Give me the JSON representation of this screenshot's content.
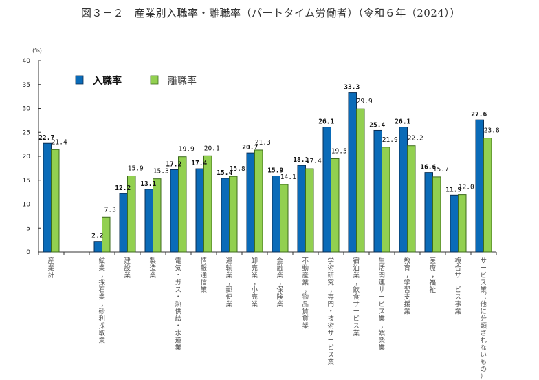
{
  "title": "図３－２　産業別入職率・離職率（パートタイム労働者）（令和６年（2024））",
  "colors": {
    "entry": "#0a6bb8",
    "entry_stroke": "#0b2f55",
    "separation": "#92d050",
    "separation_stroke": "#3d6b1c"
  },
  "chart_data": {
    "type": "bar",
    "title": "図３－２　産業別入職率・離職率（パートタイム労働者）（令和６年（2024））",
    "xlabel": "",
    "ylabel": "(%)",
    "ylim": [
      0,
      40
    ],
    "yticks": [
      0,
      5,
      10,
      15,
      20,
      25,
      30,
      35,
      40
    ],
    "grid": false,
    "legend_position": "top-left",
    "categories": [
      "産業計",
      "",
      "鉱業，採石業，砂利採取業",
      "建設業",
      "製造業",
      "電気・ガス・熱供給・水道業",
      "情報通信業",
      "運輸業，郵便業",
      "卸売業，小売業",
      "金融業，保険業",
      "不動産業，物品賃貸業",
      "学術研究，専門・技術サービス業",
      "宿泊業，飲食サービス業",
      "生活関連サービス業，娯楽業",
      "教育，学習支援業",
      "医療，福祉",
      "複合サービス事業",
      "サービス業（他に分類されないもの）"
    ],
    "series": [
      {
        "name": "入職率",
        "values": [
          22.7,
          null,
          2.2,
          12.2,
          13.1,
          17.2,
          17.4,
          15.4,
          20.7,
          15.9,
          18.1,
          26.1,
          33.3,
          25.4,
          26.1,
          16.6,
          11.9,
          27.6
        ],
        "labels": [
          "22.7",
          "",
          "2.2",
          "12.2",
          "13.1",
          "17.2",
          "17.4",
          "15.4",
          "20.7",
          "15.9",
          "18.1",
          "26.1",
          "33.3",
          "25.4",
          "26.1",
          "16.6",
          "11.9",
          "27.6"
        ]
      },
      {
        "name": "離職率",
        "values": [
          21.4,
          null,
          7.3,
          15.9,
          15.3,
          19.9,
          20.1,
          15.8,
          21.3,
          14.1,
          17.4,
          19.5,
          29.9,
          21.9,
          22.2,
          15.7,
          12.0,
          23.8
        ],
        "labels": [
          "21.4",
          "",
          "7.3",
          "15.9",
          "15.3",
          "19.9",
          "20.1",
          "15.8",
          "21.3",
          "14.1",
          "17.4",
          "19.5",
          "29.9",
          "21.9",
          "22.2",
          "15.7",
          "12.0",
          "23.8"
        ]
      }
    ]
  }
}
